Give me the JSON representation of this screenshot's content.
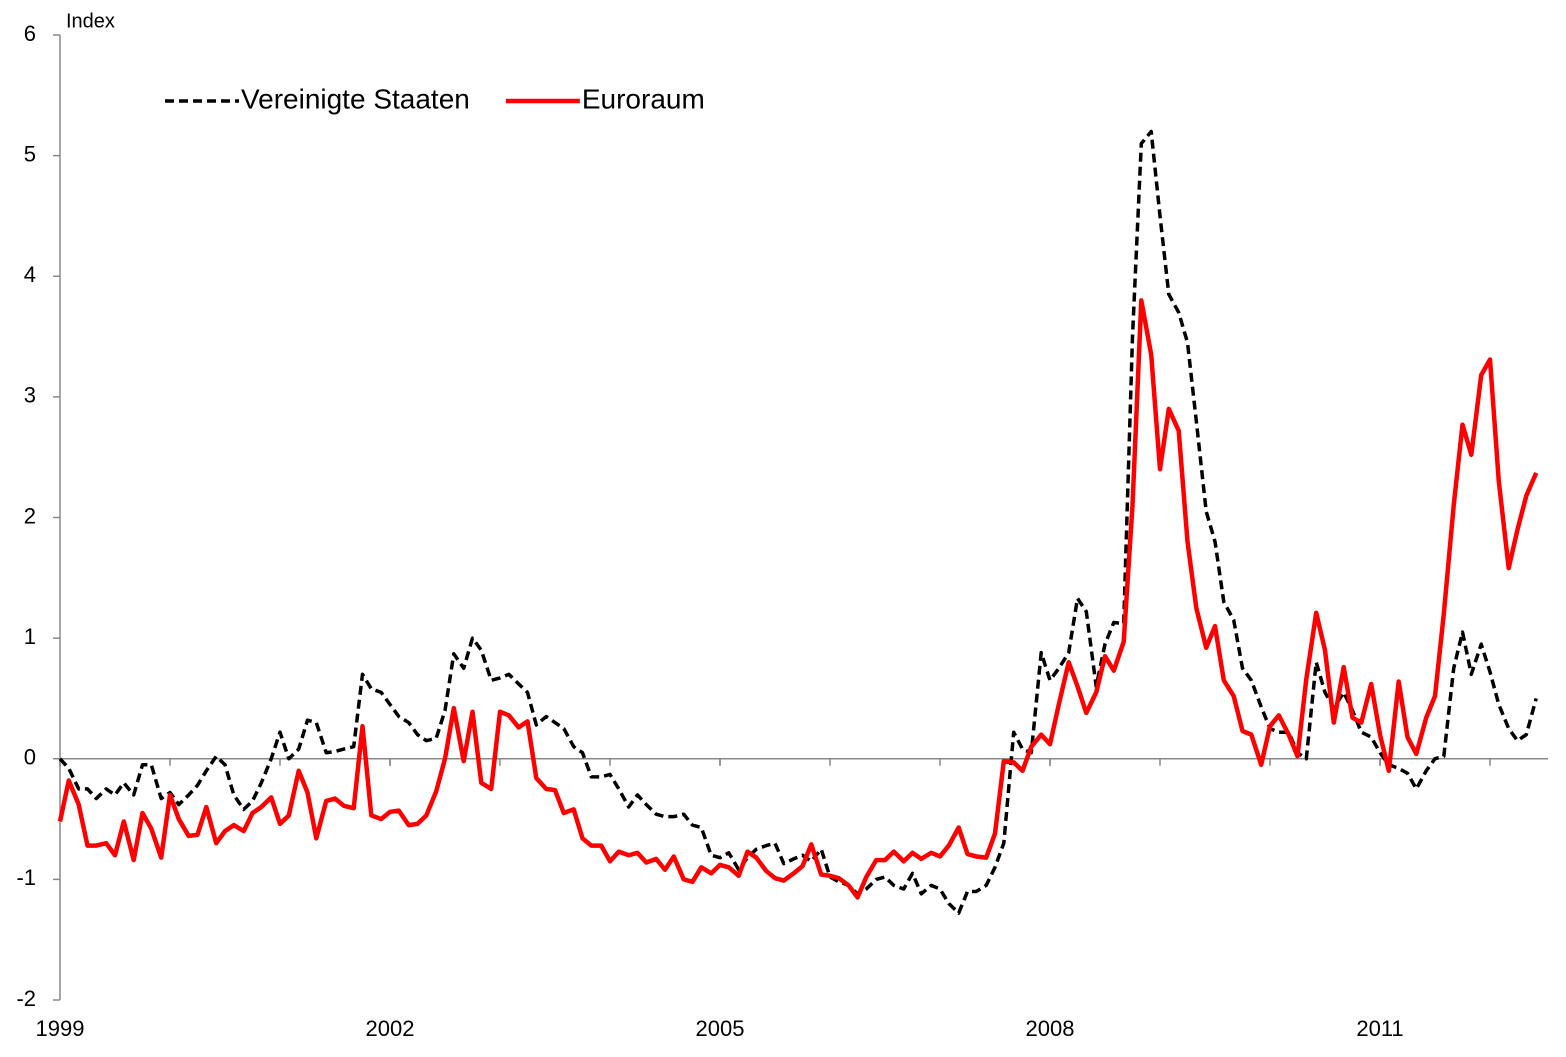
{
  "chart_data": {
    "type": "line",
    "y_axis_label": "Index",
    "x": [
      1999,
      1999.08,
      1999.17,
      1999.25,
      1999.33,
      1999.42,
      1999.5,
      1999.58,
      1999.67,
      1999.75,
      1999.83,
      1999.92,
      2000,
      2000.08,
      2000.17,
      2000.25,
      2000.33,
      2000.42,
      2000.5,
      2000.58,
      2000.67,
      2000.75,
      2000.83,
      2000.92,
      2001,
      2001.08,
      2001.17,
      2001.25,
      2001.33,
      2001.42,
      2001.5,
      2001.58,
      2001.67,
      2001.75,
      2001.83,
      2001.92,
      2002,
      2002.08,
      2002.17,
      2002.25,
      2002.33,
      2002.42,
      2002.5,
      2002.58,
      2002.67,
      2002.75,
      2002.83,
      2002.92,
      2003,
      2003.08,
      2003.17,
      2003.25,
      2003.33,
      2003.42,
      2003.5,
      2003.58,
      2003.67,
      2003.75,
      2003.83,
      2003.92,
      2004,
      2004.08,
      2004.17,
      2004.25,
      2004.33,
      2004.42,
      2004.5,
      2004.58,
      2004.67,
      2004.75,
      2004.83,
      2004.92,
      2005,
      2005.08,
      2005.17,
      2005.25,
      2005.33,
      2005.42,
      2005.5,
      2005.58,
      2005.67,
      2005.75,
      2005.83,
      2005.92,
      2006,
      2006.08,
      2006.17,
      2006.25,
      2006.33,
      2006.42,
      2006.5,
      2006.58,
      2006.67,
      2006.75,
      2006.83,
      2006.92,
      2007,
      2007.08,
      2007.17,
      2007.25,
      2007.33,
      2007.42,
      2007.5,
      2007.58,
      2007.67,
      2007.75,
      2007.83,
      2007.92,
      2008,
      2008.08,
      2008.17,
      2008.25,
      2008.33,
      2008.42,
      2008.5,
      2008.58,
      2008.67,
      2008.75,
      2008.83,
      2008.92,
      2009,
      2009.08,
      2009.17,
      2009.25,
      2009.33,
      2009.42,
      2009.5,
      2009.58,
      2009.67,
      2009.75,
      2009.83,
      2009.92,
      2010,
      2010.08,
      2010.17,
      2010.25,
      2010.33,
      2010.42,
      2010.5,
      2010.58,
      2010.67,
      2010.75,
      2010.83,
      2010.92,
      2011,
      2011.08,
      2011.17,
      2011.25,
      2011.33,
      2011.42,
      2011.5,
      2011.58,
      2011.67,
      2011.75,
      2011.83,
      2011.92,
      2012,
      2012.08,
      2012.17,
      2012.25,
      2012.33,
      2012.42
    ],
    "series": [
      {
        "name": "Vereinigte Staaten",
        "color": "#000000",
        "dash": true,
        "values": [
          0.0,
          -0.08,
          -0.25,
          -0.25,
          -0.33,
          -0.25,
          -0.3,
          -0.2,
          -0.3,
          -0.05,
          -0.05,
          -0.33,
          -0.28,
          -0.38,
          -0.3,
          -0.22,
          -0.1,
          0.02,
          -0.05,
          -0.3,
          -0.42,
          -0.35,
          -0.2,
          0.0,
          0.22,
          0.0,
          0.08,
          0.32,
          0.3,
          0.05,
          0.06,
          0.08,
          0.1,
          0.7,
          0.58,
          0.55,
          0.45,
          0.35,
          0.3,
          0.2,
          0.15,
          0.17,
          0.4,
          0.87,
          0.75,
          1.0,
          0.9,
          0.65,
          0.67,
          0.7,
          0.62,
          0.55,
          0.28,
          0.35,
          0.3,
          0.25,
          0.1,
          0.05,
          -0.15,
          -0.15,
          -0.13,
          -0.25,
          -0.4,
          -0.3,
          -0.38,
          -0.46,
          -0.48,
          -0.48,
          -0.46,
          -0.55,
          -0.57,
          -0.8,
          -0.82,
          -0.78,
          -0.92,
          -0.82,
          -0.75,
          -0.72,
          -0.7,
          -0.87,
          -0.83,
          -0.8,
          -0.85,
          -0.75,
          -0.98,
          -1.02,
          -1.05,
          -1.12,
          -1.08,
          -1.0,
          -0.98,
          -1.05,
          -1.08,
          -0.95,
          -1.12,
          -1.05,
          -1.08,
          -1.2,
          -1.28,
          -1.1,
          -1.1,
          -1.05,
          -0.9,
          -0.7,
          0.22,
          0.08,
          0.05,
          0.88,
          0.65,
          0.75,
          0.88,
          1.33,
          1.22,
          0.6,
          0.95,
          1.13,
          1.12,
          3.5,
          5.1,
          5.2,
          4.5,
          3.85,
          3.7,
          3.45,
          2.8,
          2.05,
          1.8,
          1.3,
          1.15,
          0.75,
          0.65,
          0.43,
          0.25,
          0.22,
          0.22,
          0.05,
          0.0,
          0.8,
          0.55,
          0.42,
          0.55,
          0.4,
          0.22,
          0.18,
          0.05,
          -0.05,
          -0.08,
          -0.12,
          -0.25,
          -0.1,
          0.0,
          0.02,
          0.75,
          1.05,
          0.7,
          0.95,
          0.72,
          0.45,
          0.25,
          0.15,
          0.2,
          0.5
        ]
      },
      {
        "name": "Euroraum",
        "color": "#ff0000",
        "dash": false,
        "values": [
          -0.52,
          -0.18,
          -0.38,
          -0.72,
          -0.72,
          -0.7,
          -0.8,
          -0.52,
          -0.84,
          -0.45,
          -0.58,
          -0.82,
          -0.3,
          -0.5,
          -0.64,
          -0.63,
          -0.4,
          -0.7,
          -0.6,
          -0.55,
          -0.6,
          -0.45,
          -0.4,
          -0.32,
          -0.54,
          -0.47,
          -0.1,
          -0.28,
          -0.66,
          -0.35,
          -0.33,
          -0.39,
          -0.41,
          0.27,
          -0.47,
          -0.5,
          -0.44,
          -0.43,
          -0.55,
          -0.54,
          -0.47,
          -0.27,
          0.0,
          0.42,
          -0.02,
          0.39,
          -0.2,
          -0.25,
          0.39,
          0.36,
          0.26,
          0.31,
          -0.16,
          -0.25,
          -0.26,
          -0.45,
          -0.42,
          -0.66,
          -0.72,
          -0.72,
          -0.85,
          -0.77,
          -0.8,
          -0.78,
          -0.86,
          -0.83,
          -0.92,
          -0.81,
          -1.0,
          -1.02,
          -0.9,
          -0.95,
          -0.88,
          -0.9,
          -0.97,
          -0.77,
          -0.82,
          -0.93,
          -0.99,
          -1.01,
          -0.95,
          -0.89,
          -0.71,
          -0.96,
          -0.97,
          -0.99,
          -1.05,
          -1.15,
          -0.98,
          -0.84,
          -0.84,
          -0.77,
          -0.85,
          -0.78,
          -0.83,
          -0.78,
          -0.81,
          -0.72,
          -0.57,
          -0.79,
          -0.81,
          -0.82,
          -0.62,
          -0.02,
          -0.03,
          -0.1,
          0.1,
          0.2,
          0.12,
          0.45,
          0.8,
          0.6,
          0.38,
          0.55,
          0.85,
          0.73,
          0.97,
          2.1,
          3.8,
          3.35,
          2.4,
          2.9,
          2.72,
          1.8,
          1.25,
          0.92,
          1.1,
          0.65,
          0.52,
          0.23,
          0.2,
          -0.05,
          0.27,
          0.36,
          0.2,
          0.02,
          0.66,
          1.21,
          0.9,
          0.3,
          0.76,
          0.34,
          0.3,
          0.62,
          0.2,
          -0.1,
          0.64,
          0.18,
          0.04,
          0.34,
          0.52,
          1.2,
          2.1,
          2.77,
          2.52,
          3.18,
          3.31,
          2.3,
          1.58,
          1.9,
          2.18,
          2.37
        ]
      }
    ],
    "xlim": [
      1999,
      2012.5
    ],
    "xticks": [
      1999,
      2002,
      2005,
      2008,
      2011
    ],
    "ylim": [
      -2,
      6
    ],
    "yticks": [
      -2,
      -1,
      0,
      1,
      2,
      3,
      4,
      5,
      6
    ],
    "grid": false,
    "legend": "top-left"
  }
}
